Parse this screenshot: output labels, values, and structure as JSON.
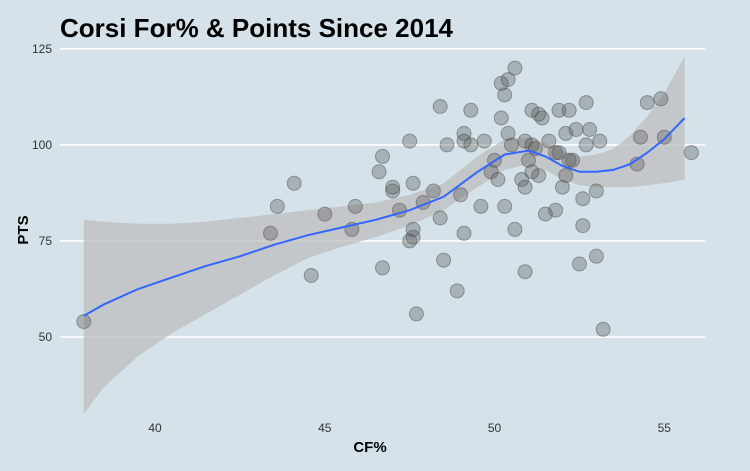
{
  "chart_data": {
    "type": "scatter",
    "title": "Corsi For% & Points Since 2014",
    "xlabel": "CF%",
    "ylabel": "PTS",
    "xlim": [
      37.2,
      56.2
    ],
    "ylim": [
      31,
      126
    ],
    "x_ticks": [
      40,
      45,
      50,
      55
    ],
    "y_ticks": [
      50,
      75,
      100,
      125
    ],
    "grid": "horizontal-only",
    "colors": {
      "background": "#d5e2ea",
      "grid": "#ffffff",
      "points": "#555555",
      "smooth_line": "#3366ff",
      "confidence_band": "#bdbdbd"
    },
    "points": [
      {
        "x": 37.9,
        "y": 54
      },
      {
        "x": 43.4,
        "y": 77
      },
      {
        "x": 43.6,
        "y": 84
      },
      {
        "x": 44.1,
        "y": 90
      },
      {
        "x": 44.6,
        "y": 66
      },
      {
        "x": 45.0,
        "y": 82
      },
      {
        "x": 45.8,
        "y": 78
      },
      {
        "x": 45.9,
        "y": 84
      },
      {
        "x": 46.6,
        "y": 93
      },
      {
        "x": 46.7,
        "y": 97
      },
      {
        "x": 46.7,
        "y": 68
      },
      {
        "x": 47.0,
        "y": 88
      },
      {
        "x": 47.0,
        "y": 89
      },
      {
        "x": 47.2,
        "y": 83
      },
      {
        "x": 47.5,
        "y": 101
      },
      {
        "x": 47.5,
        "y": 75
      },
      {
        "x": 47.6,
        "y": 76
      },
      {
        "x": 47.6,
        "y": 78
      },
      {
        "x": 47.6,
        "y": 90
      },
      {
        "x": 47.7,
        "y": 56
      },
      {
        "x": 47.9,
        "y": 85
      },
      {
        "x": 48.2,
        "y": 88
      },
      {
        "x": 48.4,
        "y": 110
      },
      {
        "x": 48.4,
        "y": 81
      },
      {
        "x": 48.5,
        "y": 70
      },
      {
        "x": 48.6,
        "y": 100
      },
      {
        "x": 48.9,
        "y": 62
      },
      {
        "x": 49.0,
        "y": 87
      },
      {
        "x": 49.1,
        "y": 103
      },
      {
        "x": 49.1,
        "y": 77
      },
      {
        "x": 49.1,
        "y": 101
      },
      {
        "x": 49.3,
        "y": 109
      },
      {
        "x": 49.3,
        "y": 100
      },
      {
        "x": 49.6,
        "y": 84
      },
      {
        "x": 49.7,
        "y": 101
      },
      {
        "x": 49.9,
        "y": 93
      },
      {
        "x": 50.0,
        "y": 96
      },
      {
        "x": 50.1,
        "y": 91
      },
      {
        "x": 50.2,
        "y": 116
      },
      {
        "x": 50.2,
        "y": 107
      },
      {
        "x": 50.3,
        "y": 84
      },
      {
        "x": 50.3,
        "y": 113
      },
      {
        "x": 50.4,
        "y": 117
      },
      {
        "x": 50.4,
        "y": 103
      },
      {
        "x": 50.5,
        "y": 100
      },
      {
        "x": 50.6,
        "y": 78
      },
      {
        "x": 50.6,
        "y": 120
      },
      {
        "x": 50.8,
        "y": 91
      },
      {
        "x": 50.9,
        "y": 89
      },
      {
        "x": 50.9,
        "y": 67
      },
      {
        "x": 50.9,
        "y": 101
      },
      {
        "x": 51.0,
        "y": 96
      },
      {
        "x": 51.1,
        "y": 93
      },
      {
        "x": 51.1,
        "y": 109
      },
      {
        "x": 51.1,
        "y": 100
      },
      {
        "x": 51.2,
        "y": 99
      },
      {
        "x": 51.3,
        "y": 92
      },
      {
        "x": 51.3,
        "y": 108
      },
      {
        "x": 51.4,
        "y": 107
      },
      {
        "x": 51.5,
        "y": 82
      },
      {
        "x": 51.6,
        "y": 101
      },
      {
        "x": 51.8,
        "y": 98
      },
      {
        "x": 51.8,
        "y": 83
      },
      {
        "x": 51.9,
        "y": 109
      },
      {
        "x": 51.9,
        "y": 98
      },
      {
        "x": 52.0,
        "y": 89
      },
      {
        "x": 52.1,
        "y": 92
      },
      {
        "x": 52.1,
        "y": 103
      },
      {
        "x": 52.2,
        "y": 109
      },
      {
        "x": 52.2,
        "y": 96
      },
      {
        "x": 52.3,
        "y": 96
      },
      {
        "x": 52.4,
        "y": 104
      },
      {
        "x": 52.5,
        "y": 69
      },
      {
        "x": 52.6,
        "y": 86
      },
      {
        "x": 52.6,
        "y": 79
      },
      {
        "x": 52.7,
        "y": 111
      },
      {
        "x": 52.7,
        "y": 100
      },
      {
        "x": 52.8,
        "y": 104
      },
      {
        "x": 53.0,
        "y": 88
      },
      {
        "x": 53.0,
        "y": 71
      },
      {
        "x": 53.1,
        "y": 101
      },
      {
        "x": 53.2,
        "y": 52
      },
      {
        "x": 54.2,
        "y": 95
      },
      {
        "x": 54.3,
        "y": 102
      },
      {
        "x": 54.5,
        "y": 111
      },
      {
        "x": 54.9,
        "y": 112
      },
      {
        "x": 55.0,
        "y": 102
      },
      {
        "x": 55.8,
        "y": 98
      }
    ],
    "smooth": [
      {
        "x": 37.9,
        "y": 55.5,
        "lo": 30,
        "hi": 80.5
      },
      {
        "x": 38.5,
        "y": 58.5,
        "lo": 37,
        "hi": 80
      },
      {
        "x": 39.5,
        "y": 62.5,
        "lo": 45,
        "hi": 79.5
      },
      {
        "x": 40.5,
        "y": 65.5,
        "lo": 51,
        "hi": 79.5
      },
      {
        "x": 41.5,
        "y": 68.5,
        "lo": 56,
        "hi": 80
      },
      {
        "x": 42.5,
        "y": 71,
        "lo": 61,
        "hi": 81
      },
      {
        "x": 43.5,
        "y": 74,
        "lo": 66,
        "hi": 82
      },
      {
        "x": 44.5,
        "y": 76.5,
        "lo": 70.5,
        "hi": 83
      },
      {
        "x": 45.5,
        "y": 78.5,
        "lo": 73.5,
        "hi": 84
      },
      {
        "x": 46.5,
        "y": 80.5,
        "lo": 76,
        "hi": 85
      },
      {
        "x": 47.5,
        "y": 83,
        "lo": 79,
        "hi": 87
      },
      {
        "x": 48.5,
        "y": 86.5,
        "lo": 83,
        "hi": 90
      },
      {
        "x": 49.5,
        "y": 93,
        "lo": 89,
        "hi": 97
      },
      {
        "x": 50.3,
        "y": 97.5,
        "lo": 93.5,
        "hi": 101.5
      },
      {
        "x": 51.0,
        "y": 98.5,
        "lo": 95,
        "hi": 102
      },
      {
        "x": 51.5,
        "y": 97,
        "lo": 93.5,
        "hi": 100.5
      },
      {
        "x": 52.0,
        "y": 94.5,
        "lo": 91,
        "hi": 98.5
      },
      {
        "x": 52.5,
        "y": 93,
        "lo": 89.5,
        "hi": 97
      },
      {
        "x": 53.0,
        "y": 93,
        "lo": 89,
        "hi": 97.5
      },
      {
        "x": 53.5,
        "y": 93.5,
        "lo": 89,
        "hi": 99
      },
      {
        "x": 54.0,
        "y": 95,
        "lo": 89,
        "hi": 102.5
      },
      {
        "x": 54.5,
        "y": 98,
        "lo": 89.5,
        "hi": 107.5
      },
      {
        "x": 55.0,
        "y": 101.5,
        "lo": 90,
        "hi": 113.5
      },
      {
        "x": 55.6,
        "y": 107,
        "lo": 91,
        "hi": 123
      }
    ]
  }
}
